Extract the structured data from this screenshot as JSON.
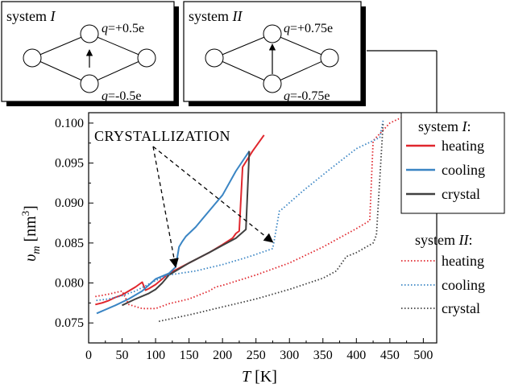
{
  "chart_data": {
    "type": "line",
    "xlabel_var": "T",
    "xlabel_unit": " [K]",
    "ylabel_var": "υ",
    "ylabel_sub": "m",
    "ylabel_unit": " [nm",
    "ylabel_sup": "3",
    "ylabel_close": "]",
    "xlim": [
      0,
      520
    ],
    "ylim": [
      0.0725,
      0.1013
    ],
    "xticks": [
      0,
      50,
      100,
      150,
      200,
      250,
      300,
      350,
      400,
      450,
      500
    ],
    "xtick_labels": [
      "0",
      "50",
      "100",
      "150",
      "200",
      "250",
      "300",
      "350",
      "400",
      "450",
      "500"
    ],
    "yticks": [
      0.075,
      0.08,
      0.085,
      0.09,
      0.095,
      0.1
    ],
    "ytick_labels": [
      "0.075",
      "0.080",
      "0.085",
      "0.090",
      "0.095",
      "0.100"
    ],
    "annotation": "CRYSTALLIZATION",
    "legend": {
      "group1_prefix": "system ",
      "group1_name": "I",
      "group1_suffix": ":",
      "group2_prefix": "system ",
      "group2_name": "II",
      "group2_suffix": ":",
      "labels": [
        "heating",
        "cooling",
        "crystal",
        "heating",
        "cooling",
        "crystal"
      ]
    },
    "colors": {
      "heating": "#e0262d",
      "cooling": "#3a85c4",
      "crystal": "#404040"
    },
    "series": [
      {
        "name": "heating",
        "system": "I",
        "style": "solid",
        "color": "#e0262d",
        "x": [
          10,
          20,
          30,
          40,
          50,
          60,
          70,
          80,
          85,
          90,
          100,
          120,
          150,
          180,
          200,
          215,
          220,
          225,
          230,
          245,
          262
        ],
        "y": [
          0.0773,
          0.0775,
          0.0778,
          0.0782,
          0.0785,
          0.079,
          0.0795,
          0.0801,
          0.0791,
          0.0793,
          0.0798,
          0.0812,
          0.0825,
          0.0838,
          0.0848,
          0.0856,
          0.0862,
          0.0865,
          0.0945,
          0.0965,
          0.0985
        ]
      },
      {
        "name": "cooling",
        "system": "I",
        "style": "solid",
        "color": "#3a85c4",
        "x": [
          240,
          220,
          200,
          180,
          160,
          145,
          140,
          135,
          130,
          120,
          100,
          80,
          60,
          40,
          12
        ],
        "y": [
          0.0965,
          0.094,
          0.091,
          0.089,
          0.087,
          0.0858,
          0.0852,
          0.0845,
          0.082,
          0.0812,
          0.0805,
          0.079,
          0.078,
          0.0772,
          0.0762
        ]
      },
      {
        "name": "crystal",
        "system": "I",
        "style": "solid",
        "color": "#404040",
        "x": [
          50,
          70,
          90,
          100,
          110,
          120,
          150,
          180,
          200,
          220,
          235,
          240
        ],
        "y": [
          0.0772,
          0.078,
          0.0787,
          0.0792,
          0.08,
          0.081,
          0.0825,
          0.0838,
          0.0847,
          0.0856,
          0.0867,
          0.0965
        ]
      },
      {
        "name": "heating",
        "system": "II",
        "style": "dotted",
        "color": "#e0262d",
        "x": [
          10,
          30,
          50,
          60,
          80,
          100,
          120,
          150,
          180,
          190,
          200,
          250,
          300,
          350,
          400,
          420,
          425,
          450,
          475
        ],
        "y": [
          0.0783,
          0.0786,
          0.079,
          0.0773,
          0.0768,
          0.0768,
          0.0774,
          0.078,
          0.079,
          0.0795,
          0.0797,
          0.081,
          0.0825,
          0.0845,
          0.0868,
          0.0878,
          0.0978,
          0.1,
          0.101
        ]
      },
      {
        "name": "cooling",
        "system": "II",
        "style": "dotted",
        "color": "#3a85c4",
        "x": [
          440,
          435,
          400,
          360,
          320,
          290,
          285,
          275,
          240,
          200,
          160,
          120,
          100,
          70,
          50,
          30,
          10
        ],
        "y": [
          0.1003,
          0.0982,
          0.0968,
          0.0942,
          0.0915,
          0.0893,
          0.089,
          0.0843,
          0.0833,
          0.0823,
          0.0815,
          0.081,
          0.0803,
          0.079,
          0.0784,
          0.078,
          0.0778
        ]
      },
      {
        "name": "crystal",
        "system": "II",
        "style": "dotted",
        "color": "#404040",
        "x": [
          105,
          150,
          200,
          250,
          300,
          350,
          370,
          385,
          400,
          425,
          430,
          440
        ],
        "y": [
          0.0752,
          0.076,
          0.077,
          0.078,
          0.0792,
          0.0806,
          0.0815,
          0.0833,
          0.0838,
          0.085,
          0.086,
          0.1
        ]
      }
    ],
    "annotation_arrow_targets": [
      {
        "x": 130,
        "y": 0.0812
      },
      {
        "x": 275,
        "y": 0.0843
      }
    ]
  },
  "insets": [
    {
      "title_prefix": "system ",
      "title_name": "I",
      "q_top": "q=+0.5e",
      "q_bottom": "q=-0.5e",
      "q_var": "q"
    },
    {
      "title_prefix": "system ",
      "title_name": "II",
      "q_top": "q=+0.75e",
      "q_bottom": "q=-0.75e",
      "q_var": "q"
    }
  ]
}
